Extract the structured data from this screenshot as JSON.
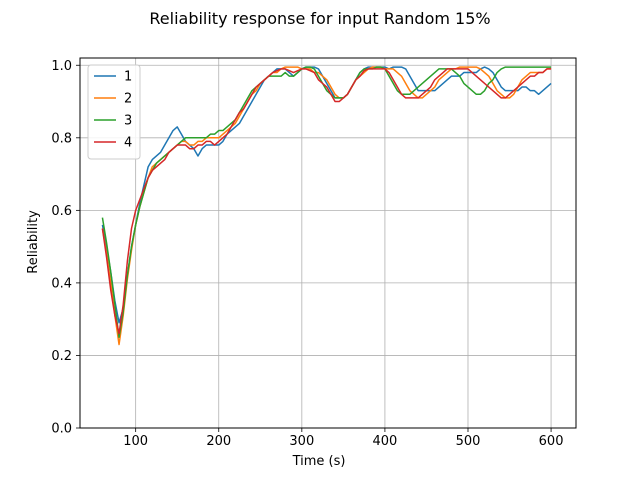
{
  "chart_data": {
    "type": "line",
    "title": "Reliability response for input Random 15%",
    "xlabel": "Time (s)",
    "ylabel": "Reliability",
    "xlim": [
      33,
      630
    ],
    "ylim": [
      0.0,
      1.02
    ],
    "xticks": [
      100,
      200,
      300,
      400,
      500,
      600
    ],
    "yticks": [
      0.0,
      0.2,
      0.4,
      0.6,
      0.8,
      1.0
    ],
    "xtick_labels": [
      "100",
      "200",
      "300",
      "400",
      "500",
      "600"
    ],
    "ytick_labels": [
      "0.0",
      "0.2",
      "0.4",
      "0.6",
      "0.8",
      "1.0"
    ],
    "grid": true,
    "legend_position": "top-left",
    "series": [
      {
        "name": "1",
        "color": "#1f77b4",
        "x": [
          60,
          65,
          70,
          75,
          80,
          85,
          90,
          95,
          100,
          105,
          110,
          115,
          120,
          125,
          130,
          135,
          140,
          145,
          150,
          155,
          160,
          165,
          170,
          175,
          180,
          185,
          190,
          195,
          200,
          205,
          210,
          215,
          220,
          225,
          230,
          235,
          240,
          245,
          250,
          255,
          260,
          265,
          270,
          275,
          280,
          285,
          290,
          295,
          300,
          305,
          310,
          315,
          320,
          325,
          330,
          335,
          340,
          345,
          350,
          355,
          360,
          365,
          370,
          375,
          380,
          385,
          390,
          395,
          400,
          405,
          410,
          415,
          420,
          425,
          430,
          435,
          440,
          445,
          450,
          455,
          460,
          465,
          470,
          475,
          480,
          485,
          490,
          495,
          500,
          505,
          510,
          515,
          520,
          525,
          530,
          535,
          540,
          545,
          550,
          555,
          560,
          565,
          570,
          575,
          580,
          585,
          590,
          595,
          600
        ],
        "y": [
          0.56,
          0.5,
          0.43,
          0.35,
          0.29,
          0.33,
          0.42,
          0.5,
          0.56,
          0.62,
          0.67,
          0.72,
          0.74,
          0.75,
          0.76,
          0.78,
          0.8,
          0.82,
          0.83,
          0.81,
          0.79,
          0.78,
          0.77,
          0.75,
          0.77,
          0.78,
          0.78,
          0.78,
          0.78,
          0.79,
          0.81,
          0.82,
          0.83,
          0.84,
          0.86,
          0.88,
          0.9,
          0.92,
          0.94,
          0.96,
          0.97,
          0.98,
          0.99,
          0.99,
          0.99,
          0.98,
          0.97,
          0.98,
          0.99,
          0.995,
          0.995,
          0.995,
          0.99,
          0.97,
          0.95,
          0.93,
          0.91,
          0.91,
          0.91,
          0.92,
          0.94,
          0.96,
          0.98,
          0.99,
          0.995,
          0.995,
          0.995,
          0.995,
          0.995,
          0.99,
          0.995,
          0.995,
          0.995,
          0.99,
          0.97,
          0.95,
          0.93,
          0.93,
          0.93,
          0.93,
          0.93,
          0.94,
          0.95,
          0.96,
          0.97,
          0.97,
          0.97,
          0.98,
          0.98,
          0.98,
          0.98,
          0.99,
          0.995,
          0.99,
          0.98,
          0.96,
          0.94,
          0.93,
          0.93,
          0.93,
          0.93,
          0.94,
          0.94,
          0.93,
          0.93,
          0.92,
          0.93,
          0.94,
          0.95
        ]
      },
      {
        "name": "2",
        "color": "#ff7f0e",
        "x": [
          60,
          65,
          70,
          75,
          80,
          85,
          90,
          95,
          100,
          105,
          110,
          115,
          120,
          125,
          130,
          135,
          140,
          145,
          150,
          155,
          160,
          165,
          170,
          175,
          180,
          185,
          190,
          195,
          200,
          205,
          210,
          215,
          220,
          225,
          230,
          235,
          240,
          245,
          250,
          255,
          260,
          265,
          270,
          275,
          280,
          285,
          290,
          295,
          300,
          305,
          310,
          315,
          320,
          325,
          330,
          335,
          340,
          345,
          350,
          355,
          360,
          365,
          370,
          375,
          380,
          385,
          390,
          395,
          400,
          405,
          410,
          415,
          420,
          425,
          430,
          435,
          440,
          445,
          450,
          455,
          460,
          465,
          470,
          475,
          480,
          485,
          490,
          495,
          500,
          505,
          510,
          515,
          520,
          525,
          530,
          535,
          540,
          545,
          550,
          555,
          560,
          565,
          570,
          575,
          580,
          585,
          590,
          595,
          600
        ],
        "y": [
          0.55,
          0.48,
          0.4,
          0.31,
          0.23,
          0.31,
          0.41,
          0.49,
          0.56,
          0.61,
          0.65,
          0.69,
          0.72,
          0.73,
          0.74,
          0.75,
          0.76,
          0.77,
          0.78,
          0.79,
          0.79,
          0.78,
          0.78,
          0.79,
          0.79,
          0.8,
          0.8,
          0.8,
          0.8,
          0.81,
          0.82,
          0.83,
          0.84,
          0.86,
          0.88,
          0.9,
          0.92,
          0.93,
          0.95,
          0.96,
          0.97,
          0.98,
          0.98,
          0.99,
          0.995,
          0.995,
          0.995,
          0.995,
          0.99,
          0.99,
          0.99,
          0.98,
          0.98,
          0.97,
          0.96,
          0.94,
          0.92,
          0.91,
          0.91,
          0.92,
          0.94,
          0.96,
          0.97,
          0.98,
          0.99,
          0.995,
          0.995,
          0.995,
          0.99,
          0.99,
          0.99,
          0.98,
          0.97,
          0.95,
          0.93,
          0.92,
          0.91,
          0.91,
          0.92,
          0.93,
          0.94,
          0.96,
          0.97,
          0.98,
          0.99,
          0.99,
          0.995,
          0.995,
          0.995,
          0.995,
          0.995,
          0.99,
          0.98,
          0.97,
          0.95,
          0.93,
          0.92,
          0.91,
          0.91,
          0.92,
          0.94,
          0.96,
          0.97,
          0.98,
          0.98,
          0.98,
          0.98,
          0.99,
          0.99
        ]
      },
      {
        "name": "3",
        "color": "#2ca02c",
        "x": [
          60,
          65,
          70,
          75,
          80,
          85,
          90,
          95,
          100,
          105,
          110,
          115,
          120,
          125,
          130,
          135,
          140,
          145,
          150,
          155,
          160,
          165,
          170,
          175,
          180,
          185,
          190,
          195,
          200,
          205,
          210,
          215,
          220,
          225,
          230,
          235,
          240,
          245,
          250,
          255,
          260,
          265,
          270,
          275,
          280,
          285,
          290,
          295,
          300,
          305,
          310,
          315,
          320,
          325,
          330,
          335,
          340,
          345,
          350,
          355,
          360,
          365,
          370,
          375,
          380,
          385,
          390,
          395,
          400,
          405,
          410,
          415,
          420,
          425,
          430,
          435,
          440,
          445,
          450,
          455,
          460,
          465,
          470,
          475,
          480,
          485,
          490,
          495,
          500,
          505,
          510,
          515,
          520,
          525,
          530,
          535,
          540,
          545,
          550,
          555,
          560,
          565,
          570,
          575,
          580,
          585,
          590,
          595,
          600
        ],
        "y": [
          0.58,
          0.51,
          0.43,
          0.34,
          0.25,
          0.32,
          0.42,
          0.5,
          0.56,
          0.61,
          0.65,
          0.69,
          0.71,
          0.73,
          0.74,
          0.75,
          0.76,
          0.77,
          0.78,
          0.79,
          0.8,
          0.8,
          0.8,
          0.8,
          0.8,
          0.8,
          0.81,
          0.81,
          0.82,
          0.82,
          0.83,
          0.84,
          0.85,
          0.87,
          0.89,
          0.91,
          0.93,
          0.94,
          0.95,
          0.96,
          0.97,
          0.97,
          0.97,
          0.97,
          0.98,
          0.97,
          0.97,
          0.98,
          0.99,
          0.995,
          0.995,
          0.99,
          0.97,
          0.95,
          0.93,
          0.92,
          0.91,
          0.91,
          0.91,
          0.92,
          0.94,
          0.96,
          0.98,
          0.99,
          0.99,
          0.99,
          0.995,
          0.995,
          0.99,
          0.97,
          0.95,
          0.93,
          0.92,
          0.92,
          0.92,
          0.93,
          0.94,
          0.95,
          0.96,
          0.97,
          0.98,
          0.99,
          0.99,
          0.99,
          0.99,
          0.98,
          0.97,
          0.95,
          0.94,
          0.93,
          0.92,
          0.92,
          0.93,
          0.95,
          0.96,
          0.98,
          0.99,
          0.995,
          0.995,
          0.995,
          0.995,
          0.995,
          0.995,
          0.995,
          0.995,
          0.995,
          0.995,
          0.995,
          0.995
        ]
      },
      {
        "name": "4",
        "color": "#d62728",
        "x": [
          60,
          65,
          70,
          75,
          80,
          85,
          90,
          95,
          100,
          105,
          110,
          115,
          120,
          125,
          130,
          135,
          140,
          145,
          150,
          155,
          160,
          165,
          170,
          175,
          180,
          185,
          190,
          195,
          200,
          205,
          210,
          215,
          220,
          225,
          230,
          235,
          240,
          245,
          250,
          255,
          260,
          265,
          270,
          275,
          280,
          285,
          290,
          295,
          300,
          305,
          310,
          315,
          320,
          325,
          330,
          335,
          340,
          345,
          350,
          355,
          360,
          365,
          370,
          375,
          380,
          385,
          390,
          395,
          400,
          405,
          410,
          415,
          420,
          425,
          430,
          435,
          440,
          445,
          450,
          455,
          460,
          465,
          470,
          475,
          480,
          485,
          490,
          495,
          500,
          505,
          510,
          515,
          520,
          525,
          530,
          535,
          540,
          545,
          550,
          555,
          560,
          565,
          570,
          575,
          580,
          585,
          590,
          595,
          600
        ],
        "y": [
          0.55,
          0.47,
          0.38,
          0.31,
          0.26,
          0.34,
          0.46,
          0.55,
          0.6,
          0.63,
          0.66,
          0.69,
          0.71,
          0.72,
          0.73,
          0.74,
          0.76,
          0.77,
          0.78,
          0.78,
          0.78,
          0.77,
          0.77,
          0.78,
          0.78,
          0.79,
          0.79,
          0.78,
          0.79,
          0.8,
          0.81,
          0.83,
          0.85,
          0.87,
          0.88,
          0.9,
          0.92,
          0.94,
          0.95,
          0.96,
          0.97,
          0.98,
          0.985,
          0.99,
          0.99,
          0.985,
          0.98,
          0.985,
          0.99,
          0.99,
          0.985,
          0.98,
          0.96,
          0.95,
          0.94,
          0.92,
          0.9,
          0.9,
          0.91,
          0.92,
          0.94,
          0.96,
          0.97,
          0.985,
          0.99,
          0.99,
          0.99,
          0.99,
          0.99,
          0.98,
          0.96,
          0.94,
          0.92,
          0.91,
          0.91,
          0.91,
          0.91,
          0.92,
          0.93,
          0.94,
          0.96,
          0.97,
          0.98,
          0.99,
          0.99,
          0.99,
          0.99,
          0.99,
          0.99,
          0.98,
          0.97,
          0.96,
          0.95,
          0.94,
          0.93,
          0.92,
          0.91,
          0.91,
          0.92,
          0.93,
          0.94,
          0.95,
          0.96,
          0.97,
          0.97,
          0.98,
          0.98,
          0.99,
          0.99
        ]
      }
    ]
  }
}
